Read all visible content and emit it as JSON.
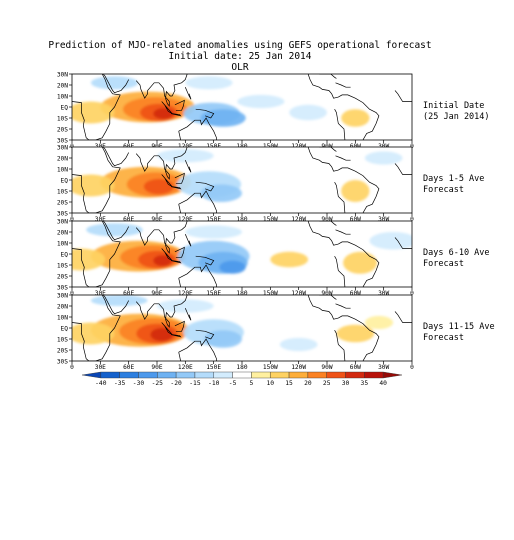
{
  "titles": {
    "line1": "Prediction of MJO-related anomalies using GEFS operational forecast",
    "line2": "Initial date: 25 Jan 2014",
    "line3": "OLR"
  },
  "panels": [
    {
      "id": "initial",
      "label1": "Initial Date",
      "label2": "(25 Jan 2014)"
    },
    {
      "id": "d1_5",
      "label1": "Days 1-5 Ave",
      "label2": "Forecast"
    },
    {
      "id": "d6_10",
      "label1": "Days 6-10 Ave",
      "label2": "Forecast"
    },
    {
      "id": "d11_15",
      "label1": "Days 11-15 Ave",
      "label2": "Forecast"
    }
  ],
  "lat_labels": [
    "30N",
    "20N",
    "10N",
    "EQ",
    "10S",
    "20S",
    "30S"
  ],
  "lon_labels": [
    "0",
    "30E",
    "60E",
    "90E",
    "120E",
    "150E",
    "180",
    "150W",
    "120W",
    "90W",
    "60W",
    "30W",
    "0"
  ],
  "colorbar": {
    "ticks": [
      "-40",
      "-35",
      "-30",
      "-25",
      "-20",
      "-15",
      "-10",
      "-5",
      "5",
      "10",
      "15",
      "20",
      "25",
      "30",
      "35",
      "40"
    ],
    "colors": [
      "#0a46b4",
      "#1461cc",
      "#2d7fe0",
      "#4d99ec",
      "#6fb2f2",
      "#93c9f7",
      "#b4dcfb",
      "#d3ecfd",
      "#ffffff",
      "#fff0a0",
      "#fed263",
      "#fdae3a",
      "#fb8224",
      "#ef5318",
      "#d22a10",
      "#b8120a",
      "#960a06"
    ]
  },
  "map": {
    "lon_range": [
      0,
      360
    ],
    "lat_range": [
      -30,
      30
    ]
  }
}
